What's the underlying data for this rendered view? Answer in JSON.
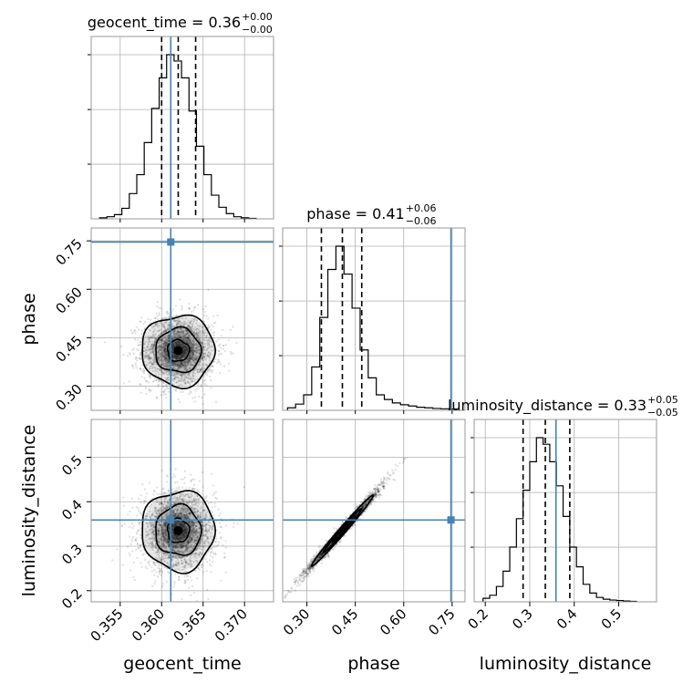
{
  "chart_data": {
    "type": "corner",
    "parameters": [
      "geocent_time",
      "phase",
      "luminosity_distance"
    ],
    "ranges": {
      "geocent_time": [
        0.3515,
        0.3735
      ],
      "phase": [
        0.225,
        0.79
      ],
      "luminosity_distance": [
        0.175,
        0.585
      ]
    },
    "truth": {
      "geocent_time": 0.3611,
      "phase": 0.7464,
      "luminosity_distance": 0.359
    },
    "colors": {
      "truth": "#4682b4",
      "hist": "#000000",
      "grid": "#b0b0b0"
    },
    "grid": true,
    "titles": [
      {
        "param": "geocent_time",
        "label": "geocent_time = 0.36",
        "plus": "+0.00",
        "minus": "−0.00"
      },
      {
        "param": "phase",
        "label": "phase = 0.41",
        "plus": "+0.06",
        "minus": "−0.06"
      },
      {
        "param": "luminosity_distance",
        "label": "luminosity_distance = 0.33",
        "plus": "+0.05",
        "minus": "−0.05"
      }
    ],
    "axis_labels": {
      "geocent_time": "geocent_time",
      "phase": "phase",
      "luminosity_distance": "luminosity_distance"
    },
    "ticks": {
      "geocent_time": {
        "values": [
          0.355,
          0.36,
          0.365,
          0.37
        ],
        "labels": [
          "0.355",
          "0.360",
          "0.365",
          "0.370"
        ]
      },
      "phase": {
        "values": [
          0.3,
          0.45,
          0.6,
          0.75
        ],
        "labels": [
          "0.30",
          "0.45",
          "0.60",
          "0.75"
        ]
      },
      "luminosity_distance": {
        "values": [
          0.2,
          0.3,
          0.4,
          0.5
        ],
        "labels": [
          "0.2",
          "0.3",
          "0.4",
          "0.5"
        ]
      }
    },
    "quantiles": {
      "geocent_time": [
        0.36,
        0.362,
        0.3641
      ],
      "phase": [
        0.345,
        0.41,
        0.47
      ],
      "luminosity_distance": [
        0.285,
        0.335,
        0.39
      ]
    },
    "histograms": {
      "geocent_time": {
        "edges": [
          0.3525,
          0.3534,
          0.3543,
          0.3552,
          0.3561,
          0.357,
          0.3579,
          0.3588,
          0.3597,
          0.3606,
          0.3615,
          0.3624,
          0.3633,
          0.3642,
          0.3651,
          0.366,
          0.3669,
          0.3678,
          0.3687,
          0.3696,
          0.3705,
          0.3714
        ],
        "counts": [
          2,
          4,
          8,
          20,
          48,
          84,
          145,
          210,
          268,
          312,
          300,
          268,
          205,
          138,
          84,
          45,
          22,
          10,
          4,
          2,
          1
        ]
      },
      "phase": {
        "edges": [
          0.24,
          0.265,
          0.29,
          0.315,
          0.34,
          0.365,
          0.39,
          0.415,
          0.44,
          0.465,
          0.49,
          0.515,
          0.54,
          0.565,
          0.59,
          0.615,
          0.64,
          0.665,
          0.69,
          0.715,
          0.74,
          0.765
        ],
        "counts": [
          8,
          20,
          50,
          140,
          300,
          455,
          530,
          440,
          330,
          195,
          105,
          50,
          35,
          24,
          18,
          14,
          10,
          8,
          6,
          5,
          4
        ]
      },
      "luminosity_distance": {
        "edges": [
          0.195,
          0.21,
          0.225,
          0.24,
          0.255,
          0.27,
          0.285,
          0.3,
          0.315,
          0.33,
          0.345,
          0.36,
          0.375,
          0.39,
          0.405,
          0.42,
          0.435,
          0.45,
          0.465,
          0.48,
          0.495,
          0.51,
          0.525,
          0.54
        ],
        "counts": [
          8,
          15,
          35,
          70,
          125,
          190,
          255,
          320,
          375,
          360,
          320,
          265,
          195,
          125,
          80,
          40,
          20,
          10,
          6,
          4,
          3,
          2,
          1
        ]
      }
    },
    "joint_2d": [
      {
        "x": "geocent_time",
        "y": "phase",
        "center": [
          0.362,
          0.41
        ],
        "sd": [
          0.0022,
          0.055
        ],
        "rho": 0
      },
      {
        "x": "geocent_time",
        "y": "luminosity_distance",
        "center": [
          0.362,
          0.335
        ],
        "sd": [
          0.0022,
          0.045
        ],
        "rho": 0
      },
      {
        "x": "phase",
        "y": "luminosity_distance",
        "center": [
          0.41,
          0.335
        ],
        "sd": [
          0.06,
          0.05
        ],
        "rho": 0.99
      }
    ]
  }
}
